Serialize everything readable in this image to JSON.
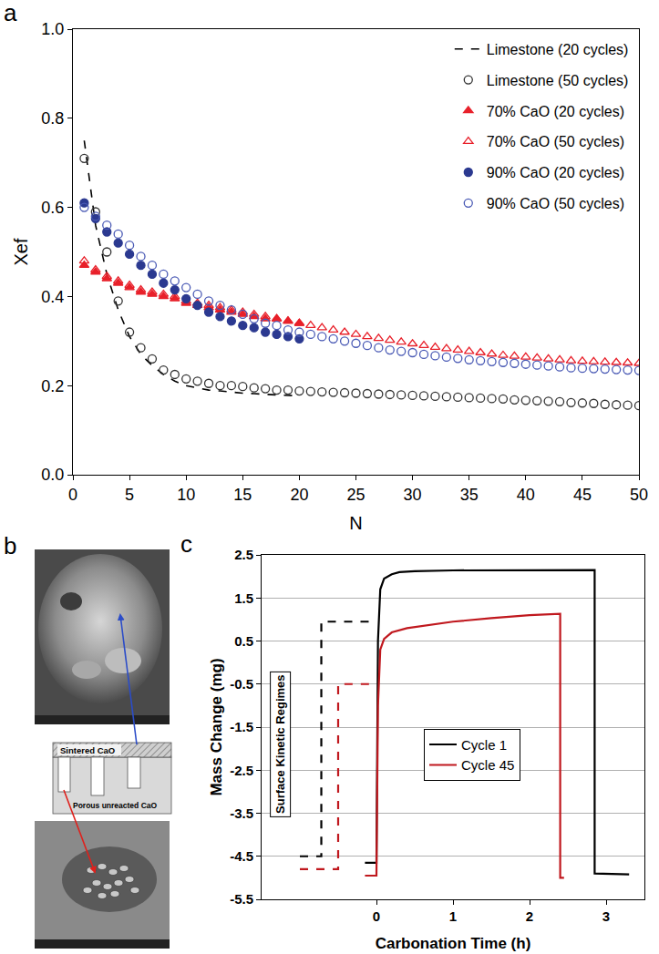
{
  "panel_labels": [
    "a",
    "b",
    "c"
  ],
  "chart_data": [
    {
      "type": "scatter",
      "x_label": "N",
      "y_label": "Xef",
      "xlim": [
        0,
        50
      ],
      "xticks": [
        0,
        5,
        10,
        15,
        20,
        25,
        30,
        35,
        40,
        45,
        50
      ],
      "ylim": [
        0,
        1
      ],
      "yticks": [
        {
          "value": 0,
          "label": "0.0"
        },
        {
          "value": 0.2,
          "label": "0.2"
        },
        {
          "value": 0.4,
          "label": "0.4"
        },
        {
          "value": 0.6,
          "label": "0.6"
        },
        {
          "value": 0.8,
          "label": "0.8"
        },
        {
          "value": 1,
          "label": "1.0"
        }
      ],
      "grid": false,
      "legend": "upper right",
      "series": [
        {
          "name": "Limestone (20 cycles)",
          "type": "line",
          "color": "#000000",
          "marker": "none",
          "line_style": "dash",
          "x": [
            1,
            2,
            3,
            4,
            5,
            6,
            7,
            8,
            9,
            10,
            11,
            12,
            13,
            14,
            15,
            16,
            17,
            18,
            19,
            20
          ],
          "values": [
            0.75,
            0.56,
            0.45,
            0.37,
            0.31,
            0.27,
            0.245,
            0.225,
            0.21,
            0.2,
            0.195,
            0.19,
            0.188,
            0.185,
            0.183,
            0.182,
            0.18,
            0.179,
            0.178,
            0.177
          ]
        },
        {
          "name": "Limestone (50 cycles)",
          "type": "scatter",
          "color": "#333333",
          "marker": "circle-open",
          "line_style": "none",
          "x": [
            1,
            2,
            3,
            4,
            5,
            6,
            7,
            8,
            9,
            10,
            11,
            12,
            13,
            14,
            15,
            16,
            17,
            18,
            19,
            20,
            21,
            22,
            23,
            24,
            25,
            26,
            27,
            28,
            29,
            30,
            31,
            32,
            33,
            34,
            35,
            36,
            37,
            38,
            39,
            40,
            41,
            42,
            43,
            44,
            45,
            46,
            47,
            48,
            49,
            50
          ],
          "values": [
            0.71,
            0.59,
            0.5,
            0.39,
            0.32,
            0.285,
            0.26,
            0.235,
            0.225,
            0.215,
            0.21,
            0.205,
            0.2,
            0.2,
            0.198,
            0.195,
            0.193,
            0.19,
            0.19,
            0.188,
            0.187,
            0.186,
            0.185,
            0.184,
            0.183,
            0.182,
            0.181,
            0.18,
            0.179,
            0.178,
            0.177,
            0.176,
            0.175,
            0.174,
            0.173,
            0.172,
            0.171,
            0.17,
            0.168,
            0.167,
            0.166,
            0.165,
            0.164,
            0.162,
            0.161,
            0.16,
            0.158,
            0.157,
            0.156,
            0.155
          ]
        },
        {
          "name": "70% CaO (20 cycles)",
          "type": "scatter",
          "color": "#e8202a",
          "marker": "triangle-up",
          "line_style": "none",
          "x": [
            1,
            2,
            3,
            4,
            5,
            6,
            7,
            8,
            9,
            10,
            11,
            12,
            13,
            14,
            15,
            16,
            17,
            18,
            19,
            20
          ],
          "values": [
            0.47,
            0.455,
            0.44,
            0.43,
            0.42,
            0.41,
            0.405,
            0.4,
            0.395,
            0.385,
            0.38,
            0.375,
            0.37,
            0.365,
            0.36,
            0.355,
            0.35,
            0.35,
            0.345,
            0.34
          ]
        },
        {
          "name": "70% CaO (50 cycles)",
          "type": "scatter",
          "color": "#e8202a",
          "marker": "triangle-up-open",
          "line_style": "none",
          "x": [
            1,
            2,
            3,
            4,
            5,
            6,
            7,
            8,
            9,
            10,
            11,
            12,
            13,
            14,
            15,
            16,
            17,
            18,
            19,
            20,
            21,
            22,
            23,
            24,
            25,
            26,
            27,
            28,
            29,
            30,
            31,
            32,
            33,
            34,
            35,
            36,
            37,
            38,
            39,
            40,
            41,
            42,
            43,
            44,
            45,
            46,
            47,
            48,
            49,
            50
          ],
          "values": [
            0.48,
            0.46,
            0.445,
            0.435,
            0.425,
            0.415,
            0.41,
            0.405,
            0.4,
            0.39,
            0.385,
            0.38,
            0.375,
            0.37,
            0.365,
            0.36,
            0.355,
            0.35,
            0.345,
            0.34,
            0.335,
            0.33,
            0.325,
            0.32,
            0.315,
            0.31,
            0.306,
            0.302,
            0.298,
            0.294,
            0.29,
            0.286,
            0.283,
            0.28,
            0.277,
            0.274,
            0.271,
            0.268,
            0.266,
            0.264,
            0.262,
            0.26,
            0.258,
            0.256,
            0.255,
            0.254,
            0.253,
            0.252,
            0.251,
            0.25
          ]
        },
        {
          "name": "90% CaO (20 cycles)",
          "type": "scatter",
          "color": "#2b3990",
          "marker": "circle",
          "line_style": "none",
          "x": [
            1,
            2,
            3,
            4,
            5,
            6,
            7,
            8,
            9,
            10,
            11,
            12,
            13,
            14,
            15,
            16,
            17,
            18,
            19,
            20
          ],
          "values": [
            0.61,
            0.575,
            0.545,
            0.52,
            0.495,
            0.47,
            0.45,
            0.43,
            0.415,
            0.395,
            0.38,
            0.365,
            0.355,
            0.345,
            0.335,
            0.33,
            0.32,
            0.315,
            0.31,
            0.305
          ]
        },
        {
          "name": "90% CaO (50 cycles)",
          "type": "scatter",
          "color": "#4a5ab5",
          "marker": "circle-open",
          "line_style": "none",
          "x": [
            1,
            2,
            3,
            4,
            5,
            6,
            7,
            8,
            9,
            10,
            11,
            12,
            13,
            14,
            15,
            16,
            17,
            18,
            19,
            20,
            21,
            22,
            23,
            24,
            25,
            26,
            27,
            28,
            29,
            30,
            31,
            32,
            33,
            34,
            35,
            36,
            37,
            38,
            39,
            40,
            41,
            42,
            43,
            44,
            45,
            46,
            47,
            48,
            49,
            50
          ],
          "values": [
            0.6,
            0.58,
            0.56,
            0.54,
            0.515,
            0.49,
            0.47,
            0.45,
            0.435,
            0.42,
            0.405,
            0.39,
            0.38,
            0.37,
            0.36,
            0.35,
            0.34,
            0.335,
            0.325,
            0.32,
            0.315,
            0.31,
            0.305,
            0.3,
            0.295,
            0.29,
            0.285,
            0.28,
            0.277,
            0.274,
            0.27,
            0.267,
            0.264,
            0.261,
            0.258,
            0.256,
            0.254,
            0.252,
            0.25,
            0.248,
            0.246,
            0.244,
            0.242,
            0.24,
            0.239,
            0.238,
            0.237,
            0.236,
            0.235,
            0.234
          ]
        }
      ]
    },
    {
      "type": "line",
      "x_label": "Carbonation Time (h)",
      "y_label": "Mass Change (mg)",
      "xlim": [
        -1.5,
        3.5
      ],
      "xticks": [
        0,
        1,
        2,
        3
      ],
      "ylim": [
        -5.5,
        2.5
      ],
      "yticks": [
        -5.5,
        -4.5,
        -3.5,
        -2.5,
        -1.5,
        -0.5,
        0.5,
        1.5,
        2.5
      ],
      "grid": true,
      "legend": "center",
      "annotation": "Surface Kinetic Regimes",
      "series": [
        {
          "name": "Cycle 1",
          "color": "#000000",
          "line_style": "solid",
          "x": [
            -0.15,
            0,
            0.02,
            0.05,
            0.1,
            0.2,
            0.3,
            0.5,
            1,
            2,
            2.85,
            2.85,
            3.3
          ],
          "values": [
            -4.65,
            -4.65,
            0.5,
            1.7,
            1.95,
            2.05,
            2.1,
            2.12,
            2.14,
            2.15,
            2.15,
            -4.9,
            -4.92
          ]
        },
        {
          "name": "Cycle 45",
          "color": "#c0181e",
          "line_style": "solid",
          "x": [
            -0.15,
            0,
            0.02,
            0.05,
            0.1,
            0.2,
            0.4,
            0.7,
            1,
            1.5,
            2,
            2.4,
            2.4,
            2.45
          ],
          "values": [
            -4.95,
            -4.95,
            -1,
            0.3,
            0.55,
            0.7,
            0.8,
            0.88,
            0.95,
            1.03,
            1.1,
            1.13,
            -5,
            -5
          ]
        },
        {
          "name": "Cycle 1",
          "color": "#000000",
          "line_style": "dash",
          "x": [
            -1.0,
            -0.72,
            -0.72,
            -0.1
          ],
          "values": [
            -4.5,
            -4.5,
            0.95,
            0.95
          ]
        },
        {
          "name": "Cycle 45",
          "color": "#c0181e",
          "line_style": "dash",
          "x": [
            -1.0,
            -0.5,
            -0.5,
            0
          ],
          "values": [
            -4.8,
            -4.8,
            -0.5,
            -0.5
          ]
        }
      ]
    }
  ],
  "diagram": {
    "labels": [
      "Sintered CaO",
      "Porous unreacted CaO"
    ]
  }
}
